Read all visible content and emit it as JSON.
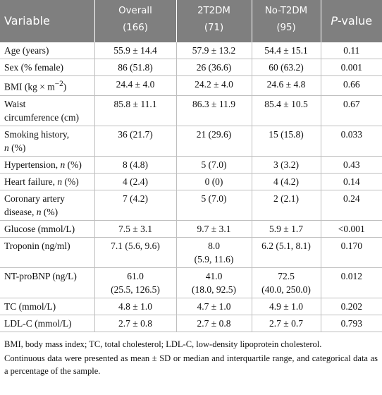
{
  "table": {
    "header": [
      "Variable",
      [
        "Overall\n(166)"
      ],
      [
        "2T2DM\n(71)"
      ],
      [
        "No-T2DM\n(95)"
      ],
      [
        {
          "t": "P",
          "i": true
        },
        {
          "t": "-value"
        }
      ]
    ],
    "rows": [
      [
        "Age (years)",
        "55.9 ± 14.4",
        "57.9 ± 13.2",
        "54.4 ± 15.1",
        "0.11"
      ],
      [
        "Sex (% female)",
        "86 (51.8)",
        "26 (36.6)",
        "60 (63.2)",
        "0.001"
      ],
      [
        [
          {
            "t": "BMI (kg × m"
          },
          {
            "t": "−2",
            "sup": true
          },
          {
            "t": ")"
          }
        ],
        "24.4 ± 4.0",
        "24.2 ± 4.0",
        "24.6 ± 4.8",
        "0.66"
      ],
      [
        "Waist\ncircumference (cm)",
        "85.8 ± 11.1",
        "86.3 ± 11.9",
        "85.4 ± 10.5",
        "0.67"
      ],
      [
        [
          {
            "t": "Smoking history,\n"
          },
          {
            "t": "n",
            "i": true
          },
          {
            "t": " (%)"
          }
        ],
        "36 (21.7)",
        "21 (29.6)",
        "15 (15.8)",
        "0.033"
      ],
      [
        [
          {
            "t": "Hypertension, "
          },
          {
            "t": "n",
            "i": true
          },
          {
            "t": " (%)"
          }
        ],
        "8 (4.8)",
        "5 (7.0)",
        "3 (3.2)",
        "0.43"
      ],
      [
        [
          {
            "t": "Heart failure, "
          },
          {
            "t": "n",
            "i": true
          },
          {
            "t": " (%)"
          }
        ],
        "4 (2.4)",
        "0 (0)",
        "4 (4.2)",
        "0.14"
      ],
      [
        [
          {
            "t": "Coronary artery\ndisease, "
          },
          {
            "t": "n",
            "i": true
          },
          {
            "t": " (%)"
          }
        ],
        "7 (4.2)",
        "5 (7.0)",
        "2 (2.1)",
        "0.24"
      ],
      [
        "Glucose (mmol/L)",
        "7.5 ± 3.1",
        "9.7 ± 3.1",
        "5.9 ± 1.7",
        "<0.001"
      ],
      [
        "Troponin (ng/ml)",
        "7.1 (5.6, 9.6)",
        "8.0\n(5.9, 11.6)",
        "6.2 (5.1, 8.1)",
        "0.170"
      ],
      [
        "NT-proBNP (ng/L)",
        "61.0\n(25.5, 126.5)",
        "41.0\n(18.0, 92.5)",
        "72.5\n(40.0, 250.0)",
        "0.012"
      ],
      [
        "TC (mmol/L)",
        "4.8 ± 1.0",
        "4.7 ± 1.0",
        "4.9 ± 1.0",
        "0.202"
      ],
      [
        "LDL-C (mmol/L)",
        "2.7 ± 0.8",
        "2.7 ± 0.8",
        "2.7 ± 0.7",
        "0.793"
      ]
    ],
    "footnotes": [
      "BMI, body mass index; TC, total cholesterol; LDL-C, low-density lipoprotein cholesterol.",
      "Continuous data were presented as mean ± SD or median and interquartile range, and categorical data as a percentage of the sample."
    ]
  }
}
